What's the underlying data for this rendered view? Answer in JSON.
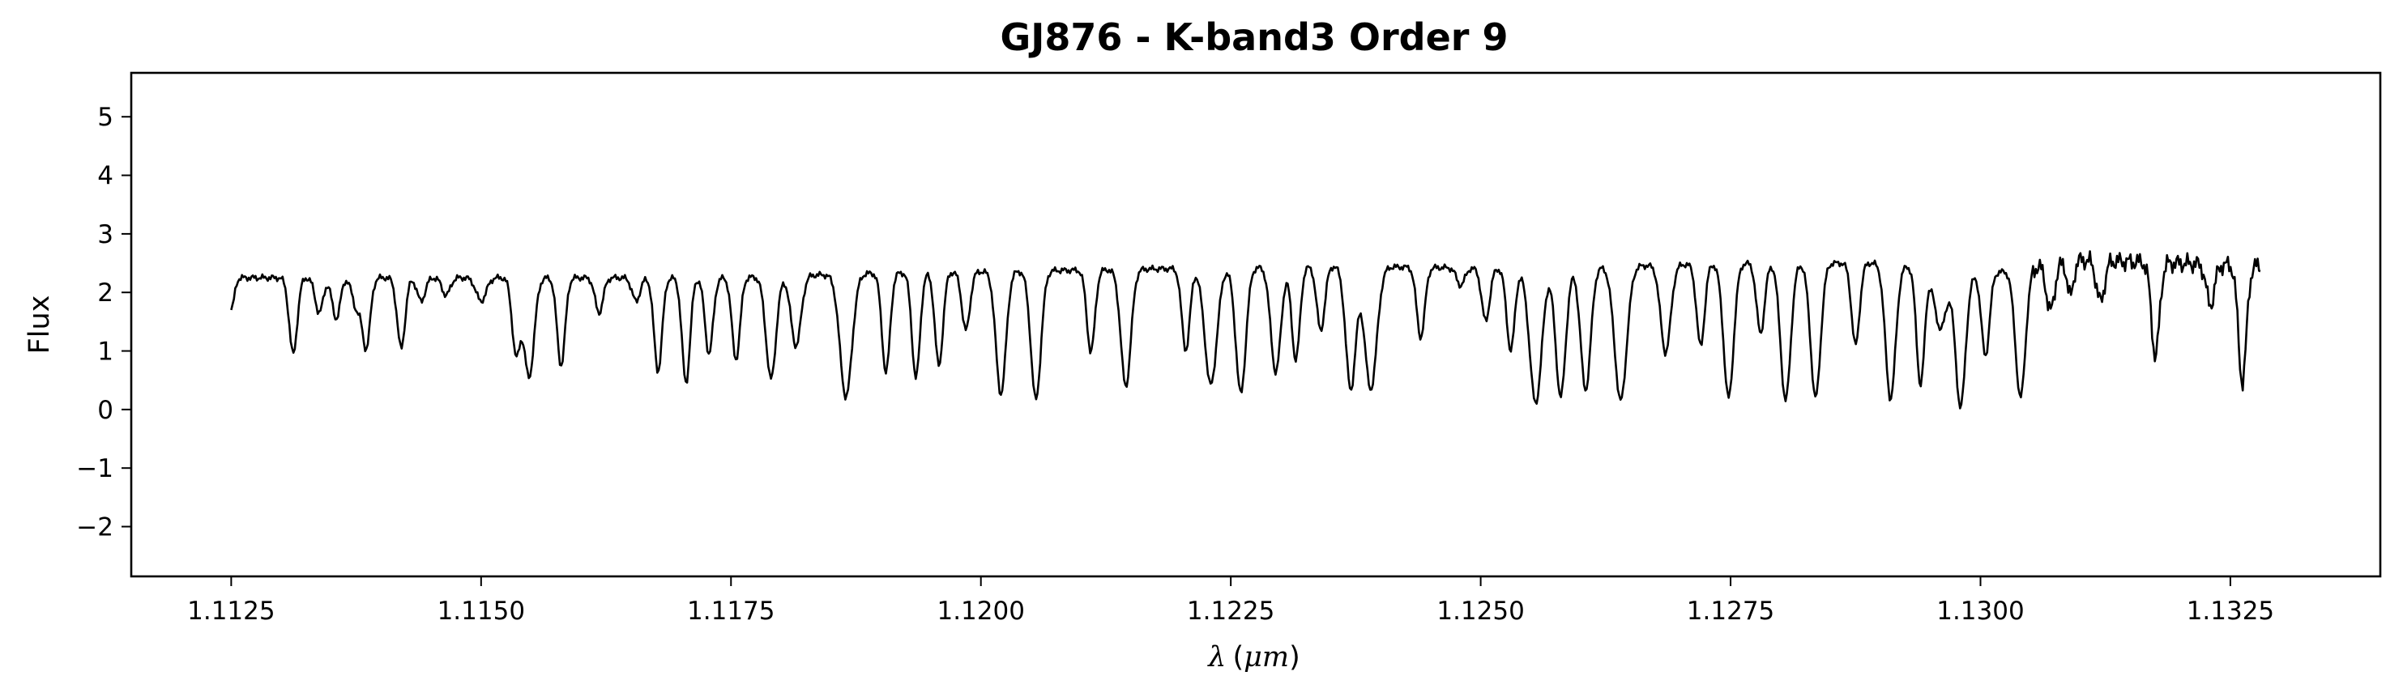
{
  "chart_data": {
    "type": "line",
    "title": "GJ876 - K-band3 Order 9",
    "xlabel": {
      "symbol": "λ",
      "open": "(",
      "unit": "μm",
      "close": ")"
    },
    "ylabel": "Flux",
    "xlim": [
      1.1115,
      1.134
    ],
    "ylim": [
      -2.85,
      5.75
    ],
    "xticks": [
      1.1125,
      1.115,
      1.1175,
      1.12,
      1.1225,
      1.125,
      1.1275,
      1.13,
      1.1325
    ],
    "xtick_labels": [
      "1.1125",
      "1.1150",
      "1.1175",
      "1.1200",
      "1.1225",
      "1.1250",
      "1.1275",
      "1.1300",
      "1.1325"
    ],
    "yticks": [
      -2,
      -1,
      0,
      1,
      2,
      3,
      4,
      5
    ],
    "ytick_labels": [
      "−2",
      "−1",
      "0",
      "1",
      "2",
      "3",
      "4",
      "5"
    ],
    "grid": false,
    "line_color": "#000000",
    "series": [
      {
        "x_start": 1.1125,
        "x_end": 1.1328,
        "continuum": [
          [
            1.1125,
            2.25
          ],
          [
            1.115,
            2.25
          ],
          [
            1.1175,
            2.25
          ],
          [
            1.119,
            2.33
          ],
          [
            1.121,
            2.38
          ],
          [
            1.1235,
            2.45
          ],
          [
            1.1255,
            2.4
          ],
          [
            1.1275,
            2.5
          ],
          [
            1.129,
            2.5
          ],
          [
            1.13,
            2.3
          ],
          [
            1.131,
            2.55
          ],
          [
            1.1328,
            2.45
          ]
        ],
        "absorption_lines": [
          [
            1.1125,
            0.55,
            3e-05
          ],
          [
            1.11312,
            1.3,
            4e-05
          ],
          [
            1.11338,
            0.6,
            4e-05
          ],
          [
            1.11355,
            0.7,
            4e-05
          ],
          [
            1.11375,
            0.5,
            4e-05
          ],
          [
            1.11385,
            1.2,
            4e-05
          ],
          [
            1.1142,
            1.2,
            4e-05
          ],
          [
            1.1144,
            0.4,
            4e-05
          ],
          [
            1.11465,
            0.3,
            4e-05
          ],
          [
            1.115,
            0.4,
            5e-05
          ],
          [
            1.11535,
            1.3,
            4e-05
          ],
          [
            1.11548,
            1.7,
            5e-05
          ],
          [
            1.1158,
            1.5,
            4e-05
          ],
          [
            1.11618,
            0.6,
            4e-05
          ],
          [
            1.11655,
            0.4,
            4e-05
          ],
          [
            1.11677,
            1.6,
            4e-05
          ],
          [
            1.11705,
            1.8,
            4e-05
          ],
          [
            1.11728,
            1.3,
            4e-05
          ],
          [
            1.11755,
            1.4,
            4e-05
          ],
          [
            1.1179,
            1.75,
            5e-05
          ],
          [
            1.11815,
            1.2,
            5e-05
          ],
          [
            1.11865,
            2.1,
            6e-05
          ],
          [
            1.11905,
            1.7,
            4e-05
          ],
          [
            1.11935,
            1.8,
            4e-05
          ],
          [
            1.11958,
            1.6,
            4e-05
          ],
          [
            1.11985,
            1.0,
            4e-05
          ],
          [
            1.1202,
            2.1,
            5e-05
          ],
          [
            1.12055,
            2.2,
            5e-05
          ],
          [
            1.1211,
            1.4,
            4e-05
          ],
          [
            1.12145,
            2.0,
            5e-05
          ],
          [
            1.12205,
            1.4,
            4e-05
          ],
          [
            1.1223,
            2.0,
            6e-05
          ],
          [
            1.1226,
            2.15,
            5e-05
          ],
          [
            1.12295,
            1.8,
            5e-05
          ],
          [
            1.12315,
            1.6,
            4e-05
          ],
          [
            1.1234,
            1.1,
            4e-05
          ],
          [
            1.1237,
            2.1,
            5e-05
          ],
          [
            1.1239,
            2.1,
            6e-05
          ],
          [
            1.1244,
            1.2,
            4e-05
          ],
          [
            1.1248,
            0.3,
            4e-05
          ],
          [
            1.12505,
            0.9,
            4e-05
          ],
          [
            1.1253,
            1.4,
            4e-05
          ],
          [
            1.12555,
            2.3,
            6e-05
          ],
          [
            1.1258,
            2.2,
            5e-05
          ],
          [
            1.12605,
            2.1,
            5e-05
          ],
          [
            1.1264,
            2.3,
            6e-05
          ],
          [
            1.12685,
            1.5,
            5e-05
          ],
          [
            1.1272,
            1.4,
            4e-05
          ],
          [
            1.12748,
            2.3,
            5e-05
          ],
          [
            1.1278,
            1.2,
            4e-05
          ],
          [
            1.12805,
            2.35,
            5e-05
          ],
          [
            1.12835,
            2.3,
            5e-05
          ],
          [
            1.12875,
            1.4,
            4e-05
          ],
          [
            1.1291,
            2.3,
            5e-05
          ],
          [
            1.1294,
            2.0,
            4e-05
          ],
          [
            1.1296,
            1.0,
            6e-05
          ],
          [
            1.1298,
            2.3,
            5e-05
          ],
          [
            1.13005,
            1.4,
            4e-05
          ],
          [
            1.1304,
            2.2,
            5e-05
          ],
          [
            1.1307,
            0.8,
            4e-05
          ],
          [
            1.1309,
            0.6,
            3e-05
          ],
          [
            1.1312,
            0.7,
            4e-05
          ],
          [
            1.13175,
            1.6,
            4e-05
          ],
          [
            1.1323,
            0.7,
            4e-05
          ],
          [
            1.13262,
            2.0,
            4e-05
          ]
        ]
      }
    ]
  }
}
